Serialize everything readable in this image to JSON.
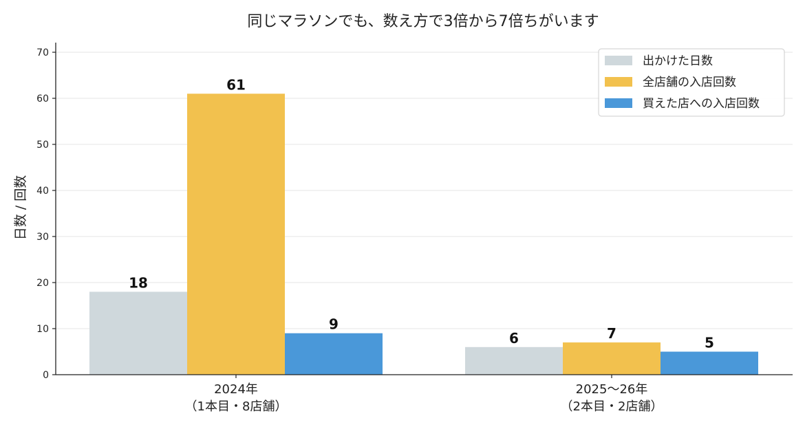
{
  "chart_data": {
    "type": "bar",
    "title": "同じマラソンでも、数え方で3倍から7倍ちがいます",
    "ylabel": "日数 / 回数",
    "xlabel": "",
    "ylim": [
      0,
      72
    ],
    "yticks": [
      0,
      10,
      20,
      30,
      40,
      50,
      60,
      70
    ],
    "grid": true,
    "legend_position": "top-right",
    "categories": [
      [
        "2024年",
        "（1本目・8店舗）"
      ],
      [
        "2025〜26年",
        "（2本目・2店舗）"
      ]
    ],
    "series": [
      {
        "name": "出かけた日数",
        "values": [
          18,
          6
        ],
        "color": "#cfd8dc"
      },
      {
        "name": "全店舗の入店回数",
        "values": [
          61,
          7
        ],
        "color": "#f2c14e"
      },
      {
        "name": "買えた店への入店回数",
        "values": [
          9,
          5
        ],
        "color": "#4a98d9"
      }
    ]
  }
}
